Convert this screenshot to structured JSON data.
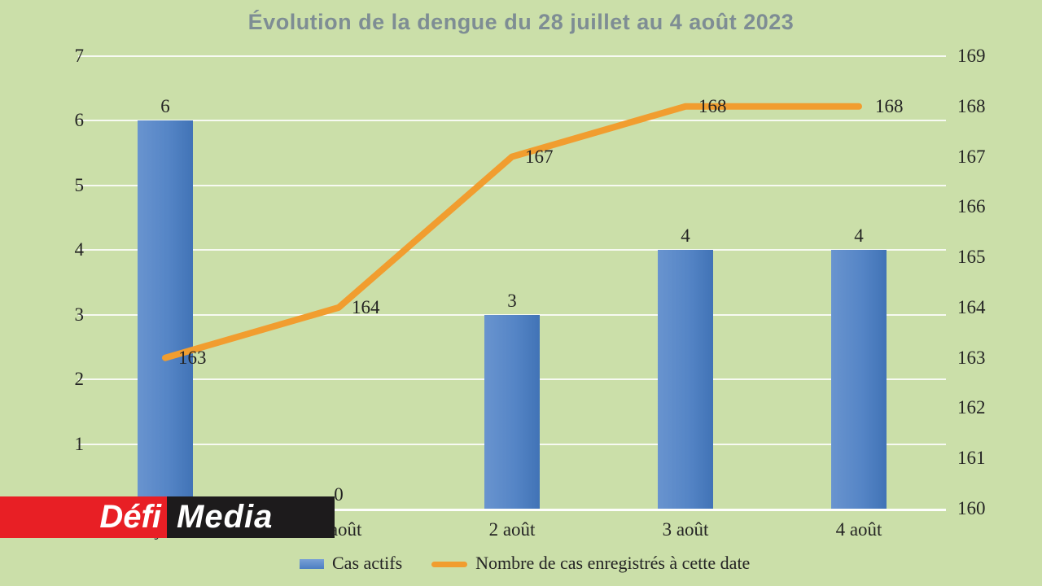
{
  "title": "Évolution de la dengue du 28 juillet au 4 août 2023",
  "chart_data": {
    "type": "bar+line combo",
    "title": "Évolution de la dengue du 28 juillet au 4 août 2023",
    "categories": [
      "28 juillet",
      "1 août",
      "2 août",
      "3 août",
      "4 août"
    ],
    "series": [
      {
        "name": "Cas actifs",
        "type": "bar",
        "axis": "left",
        "values": [
          6,
          0,
          3,
          4,
          4
        ],
        "color": "#5585c6"
      },
      {
        "name": "Nombre de cas enregistrés à cette date",
        "type": "line",
        "axis": "right",
        "values": [
          163,
          164,
          167,
          168,
          168
        ],
        "color": "#f19d2f"
      }
    ],
    "left_axis": {
      "min": 0,
      "max": 7,
      "ticks": [
        1,
        2,
        3,
        4,
        5,
        6,
        7
      ]
    },
    "right_axis": {
      "min": 160,
      "max": 169,
      "ticks": [
        160,
        161,
        162,
        163,
        164,
        165,
        166,
        167,
        168,
        169
      ]
    },
    "grid": "horizontal white lines",
    "legend_position": "bottom",
    "background_color": "#cbdfa9",
    "data_labels_bar": [
      "6",
      "0",
      "3",
      "4",
      "4"
    ],
    "data_labels_line": [
      "163",
      "164",
      "167",
      "168",
      "168"
    ]
  },
  "legend": {
    "items": [
      {
        "label": "Cas actifs",
        "color": "#5585c6",
        "marker": "bar"
      },
      {
        "label": "Nombre de cas enregistrés à cette date",
        "color": "#f19d2f",
        "marker": "line"
      }
    ]
  },
  "watermark": {
    "defi": "Défi",
    "media": "Media",
    "red": "#e81f25",
    "black": "#1d1b1c"
  }
}
